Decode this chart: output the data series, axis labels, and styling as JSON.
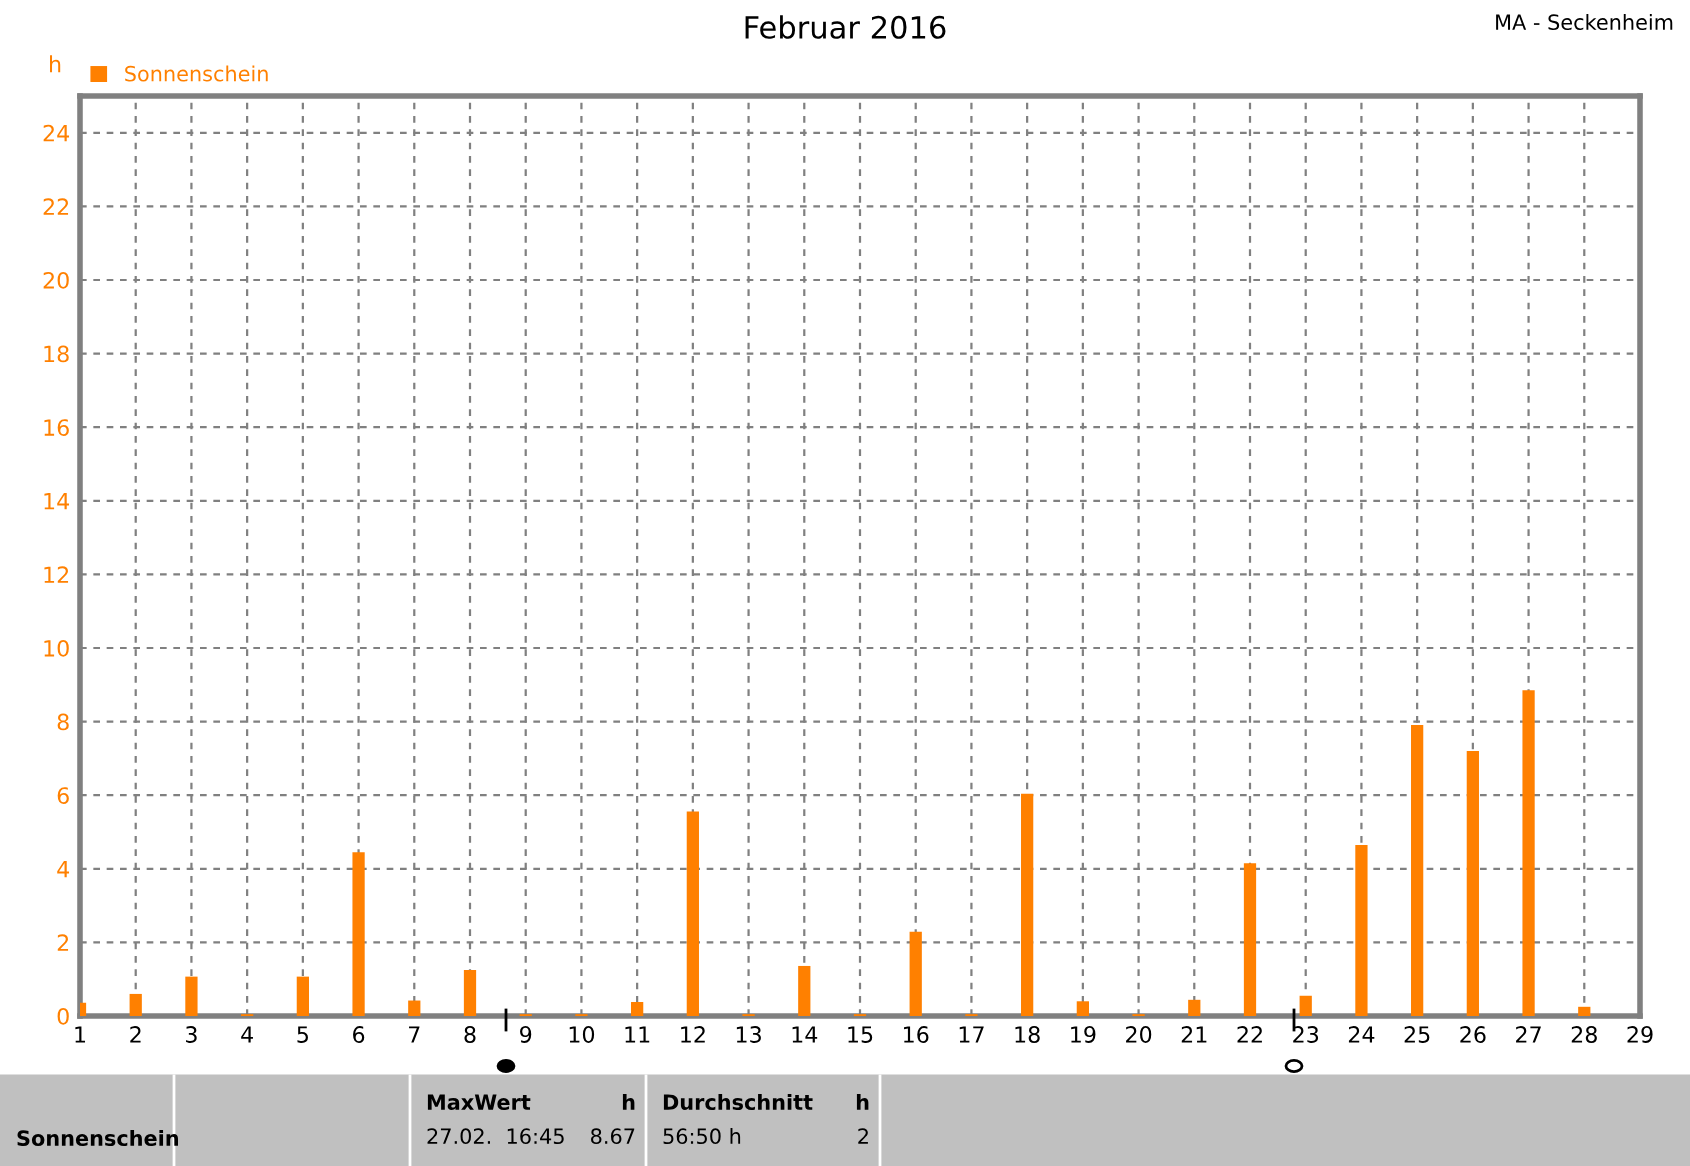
{
  "chart_data": {
    "type": "bar",
    "title": "Februar 2016",
    "subtitle": "MA - Seckenheim",
    "ylabel": "h",
    "x": [
      1,
      2,
      3,
      4,
      5,
      6,
      7,
      8,
      9,
      10,
      11,
      12,
      13,
      14,
      15,
      16,
      17,
      18,
      19,
      20,
      21,
      22,
      23,
      24,
      25,
      26,
      27,
      28
    ],
    "series": [
      {
        "name": "Sonnenschein",
        "color": "#ff8000",
        "values": [
          0.36,
          0.6,
          1.07,
          0.05,
          1.07,
          4.45,
          0.42,
          1.25,
          0.05,
          0.05,
          0.38,
          5.56,
          0.05,
          1.36,
          0.05,
          2.29,
          0.05,
          6.04,
          0.4,
          0.05,
          0.44,
          4.15,
          0.55,
          4.65,
          7.91,
          7.2,
          8.85,
          0.25
        ]
      }
    ],
    "xlim": [
      1,
      29
    ],
    "xticks": [
      1,
      2,
      3,
      4,
      5,
      6,
      7,
      8,
      9,
      10,
      11,
      12,
      13,
      14,
      15,
      16,
      17,
      18,
      19,
      20,
      21,
      22,
      23,
      24,
      25,
      26,
      27,
      28,
      29
    ],
    "ylim": [
      0,
      25
    ],
    "yticks": [
      0,
      2,
      4,
      6,
      8,
      10,
      12,
      14,
      16,
      18,
      20,
      22,
      24
    ],
    "grid": true,
    "legend": "top left",
    "annotations": [
      "Sonnenschein",
      "MaxWert",
      "h",
      "27.02.  16:45",
      "8.67",
      "Durchschnitt",
      "h",
      "56:50 h",
      "2"
    ]
  }
}
